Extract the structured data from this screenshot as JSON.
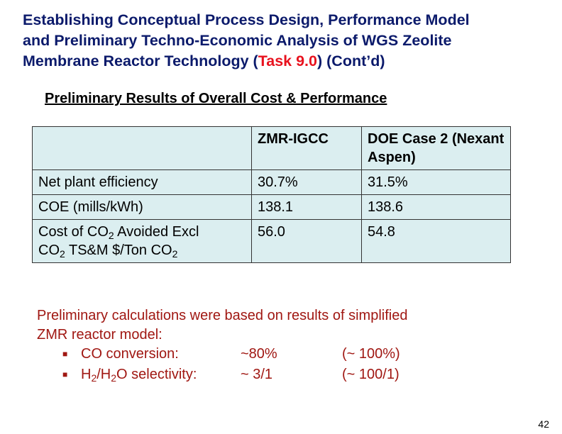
{
  "title": {
    "line1": "Establishing Conceptual Process Design, Performance Model",
    "line2": "and Preliminary Techno-Economic Analysis of WGS Zeolite",
    "line3_pre": "Membrane Reactor Technology (",
    "task": "Task 9.0",
    "line3_post": ") (Cont’d)"
  },
  "subtitle": "Preliminary Results of Overall Cost & Performance",
  "table": {
    "headers": [
      "",
      "ZMR-IGCC",
      "DOE Case 2 (Nexant Aspen)"
    ],
    "rows": [
      {
        "label": "Net plant efficiency",
        "zmr": "30.7%",
        "doe": "31.5%"
      },
      {
        "label": "COE (mills/kWh)",
        "zmr": "138.1",
        "doe": "138.6"
      },
      {
        "label_parts": [
          "Cost of CO",
          "2",
          " Avoided Excl",
          "CO",
          "2",
          " TS&M $/Ton CO",
          "2"
        ],
        "zmr": "56.0",
        "doe": "54.8"
      }
    ]
  },
  "note": {
    "line1": "Preliminary calculations were based on results of simplified",
    "line2": "ZMR reactor model:",
    "bullets": [
      {
        "label": "CO conversion:",
        "value": "~80%",
        "ref": "(~ 100%)"
      },
      {
        "label_parts": [
          "H",
          "2",
          "/H",
          "2",
          "O selectivity:"
        ],
        "value": "~ 3/1",
        "ref": "(~ 100/1)"
      }
    ]
  },
  "page_number": "42",
  "colors": {
    "title": "#0b1a6b",
    "task": "#e8121e",
    "note": "#a01712",
    "table_bg": "#dbeef0"
  }
}
